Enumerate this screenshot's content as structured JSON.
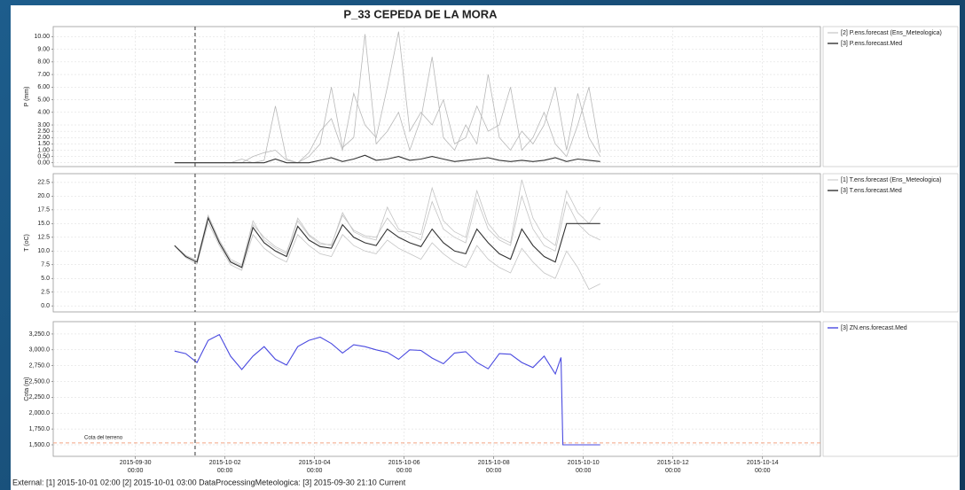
{
  "title": "P_33 CEPEDA DE LA MORA",
  "footer": "External: [1] 2015-10-01 02:00 [2] 2015-10-01 03:00 DataProcessingMeteologica: [3] 2015-09-30 21:10 Current",
  "xlim": [
    "2015-09-28 04:00",
    "2015-10-15 07:00"
  ],
  "xticks": [
    "2015-09-30 00:00",
    "2015-10-02 00:00",
    "2015-10-04 00:00",
    "2015-10-06 00:00",
    "2015-10-08 00:00",
    "2015-10-10 00:00",
    "2015-10-12 00:00",
    "2015-10-14 00:00"
  ],
  "marker_time": "2015-10-01 08:00",
  "chart_data": [
    {
      "type": "line",
      "ylabel": "P (mm)",
      "ylim": [
        -0.3,
        10.8
      ],
      "yticks": [
        {
          "value": 0,
          "label": "0.00"
        },
        {
          "value": 0.5,
          "label": "0.50"
        },
        {
          "value": 1,
          "label": "1.00"
        },
        {
          "value": 1.5,
          "label": "1.50"
        },
        {
          "value": 2,
          "label": "2.00"
        },
        {
          "value": 2.5,
          "label": "2.50"
        },
        {
          "value": 3,
          "label": "3.00"
        },
        {
          "value": 4,
          "label": "4.00"
        },
        {
          "value": 5,
          "label": "5.00"
        },
        {
          "value": 6,
          "label": "6.00"
        },
        {
          "value": 7,
          "label": "7.00"
        },
        {
          "value": 8,
          "label": "8.00"
        },
        {
          "value": 9,
          "label": "9.00"
        },
        {
          "value": 10,
          "label": "10.00"
        }
      ],
      "x": [
        "2015-09-30 21:00",
        "2015-10-01 03:00",
        "2015-10-01 09:00",
        "2015-10-01 15:00",
        "2015-10-01 21:00",
        "2015-10-02 03:00",
        "2015-10-02 09:00",
        "2015-10-02 15:00",
        "2015-10-02 21:00",
        "2015-10-03 03:00",
        "2015-10-03 09:00",
        "2015-10-03 15:00",
        "2015-10-03 21:00",
        "2015-10-04 03:00",
        "2015-10-04 09:00",
        "2015-10-04 15:00",
        "2015-10-04 21:00",
        "2015-10-05 03:00",
        "2015-10-05 09:00",
        "2015-10-05 15:00",
        "2015-10-05 21:00",
        "2015-10-06 03:00",
        "2015-10-06 09:00",
        "2015-10-06 15:00",
        "2015-10-06 21:00",
        "2015-10-07 03:00",
        "2015-10-07 09:00",
        "2015-10-07 15:00",
        "2015-10-07 21:00",
        "2015-10-08 03:00",
        "2015-10-08 09:00",
        "2015-10-08 15:00",
        "2015-10-08 21:00",
        "2015-10-09 03:00",
        "2015-10-09 09:00",
        "2015-10-09 15:00",
        "2015-10-09 21:00",
        "2015-10-10 03:00",
        "2015-10-10 09:00"
      ],
      "series": [
        {
          "name": "[2] P.ens.forecast   (Ens_Meteologica)",
          "color": "#b8b8b8",
          "members": [
            [
              0,
              0,
              0,
              0,
              0,
              0,
              0.3,
              0,
              0.2,
              4.5,
              0.3,
              0,
              0.5,
              1.5,
              6.0,
              1.2,
              2.0,
              10.2,
              1.5,
              2.5,
              4.0,
              1.0,
              3.5,
              8.4,
              2.0,
              1.0,
              3.0,
              1.5,
              7.0,
              2.0,
              1.0,
              2.5,
              1.5,
              3.0,
              6.0,
              1.0,
              5.5,
              2.0,
              0.5
            ],
            [
              0,
              0,
              0,
              0,
              0,
              0,
              0,
              0.5,
              0.8,
              1.0,
              0.2,
              0,
              0.8,
              2.5,
              3.5,
              1.0,
              5.5,
              3.0,
              2.0,
              6.0,
              10.4,
              2.5,
              4.0,
              3.0,
              5.0,
              1.5,
              2.0,
              4.5,
              2.5,
              3.0,
              6.0,
              1.0,
              2.0,
              4.0,
              1.5,
              0.5,
              3.0,
              6.0,
              0.8
            ]
          ]
        },
        {
          "name": "[3] P.ens.forecast.Med",
          "color": "#333333",
          "values": [
            0,
            0,
            0,
            0,
            0,
            0,
            0,
            0,
            0,
            0.3,
            0,
            0,
            0,
            0.2,
            0.4,
            0.1,
            0.3,
            0.6,
            0.2,
            0.3,
            0.5,
            0.2,
            0.3,
            0.5,
            0.3,
            0.1,
            0.2,
            0.3,
            0.4,
            0.2,
            0.1,
            0.2,
            0.1,
            0.2,
            0.4,
            0.1,
            0.3,
            0.2,
            0.1
          ]
        }
      ]
    },
    {
      "type": "line",
      "ylabel": "T (oC)",
      "ylim": [
        -1.1,
        24.1
      ],
      "yticks": [
        {
          "value": 0,
          "label": "0.0"
        },
        {
          "value": 2.5,
          "label": "2.5"
        },
        {
          "value": 5,
          "label": "5.0"
        },
        {
          "value": 7.5,
          "label": "7.5"
        },
        {
          "value": 10,
          "label": "10.0"
        },
        {
          "value": 12.5,
          "label": "12.5"
        },
        {
          "value": 15,
          "label": "15.0"
        },
        {
          "value": 17.5,
          "label": "17.5"
        },
        {
          "value": 20,
          "label": "20.0"
        },
        {
          "value": 22.5,
          "label": "22.5"
        }
      ],
      "x": [
        "2015-09-30 21:00",
        "2015-10-01 03:00",
        "2015-10-01 09:00",
        "2015-10-01 15:00",
        "2015-10-01 21:00",
        "2015-10-02 03:00",
        "2015-10-02 09:00",
        "2015-10-02 15:00",
        "2015-10-02 21:00",
        "2015-10-03 03:00",
        "2015-10-03 09:00",
        "2015-10-03 15:00",
        "2015-10-03 21:00",
        "2015-10-04 03:00",
        "2015-10-04 09:00",
        "2015-10-04 15:00",
        "2015-10-04 21:00",
        "2015-10-05 03:00",
        "2015-10-05 09:00",
        "2015-10-05 15:00",
        "2015-10-05 21:00",
        "2015-10-06 03:00",
        "2015-10-06 09:00",
        "2015-10-06 15:00",
        "2015-10-06 21:00",
        "2015-10-07 03:00",
        "2015-10-07 09:00",
        "2015-10-07 15:00",
        "2015-10-07 21:00",
        "2015-10-08 03:00",
        "2015-10-08 09:00",
        "2015-10-08 15:00",
        "2015-10-08 21:00",
        "2015-10-09 03:00",
        "2015-10-09 09:00",
        "2015-10-09 15:00",
        "2015-10-09 21:00",
        "2015-10-10 03:00",
        "2015-10-10 09:00"
      ],
      "series": [
        {
          "name": "[1] T.ens.forecast   (Ens_Meteologica)",
          "color": "#c4c4c4",
          "members": [
            [
              11,
              9.2,
              8.3,
              16.5,
              12,
              8.5,
              7.5,
              15.5,
              12,
              10.5,
              9.5,
              16,
              13,
              11.5,
              11,
              17,
              13.5,
              12.5,
              12,
              18,
              14,
              13,
              12,
              19,
              14,
              12.5,
              11.5,
              19.5,
              14,
              12,
              11,
              20,
              14,
              11,
              10,
              19,
              15,
              13,
              12
            ],
            [
              11,
              8.8,
              7.6,
              15.2,
              11,
              7.5,
              6.5,
              13,
              10.5,
              9,
              8,
              13,
              11,
              9.5,
              9,
              13,
              11,
              10,
              9.5,
              12,
              10.5,
              9.5,
              8.5,
              11.5,
              9.5,
              8,
              7,
              11,
              8.5,
              7,
              6,
              10.5,
              8,
              6,
              5,
              10,
              7,
              3,
              4
            ],
            [
              11,
              9,
              8,
              16.2,
              11.8,
              8.2,
              7.2,
              14.8,
              12.5,
              10.8,
              9.8,
              15.5,
              12.8,
              11.2,
              11.2,
              16.5,
              13.8,
              12.8,
              12.5,
              16,
              13.5,
              13.5,
              13,
              21.5,
              15.5,
              13.5,
              12.5,
              21,
              15,
              12.5,
              11.5,
              23,
              16,
              12.5,
              11,
              21,
              17,
              15,
              18
            ]
          ]
        },
        {
          "name": "[3] T.ens.forecast.Med",
          "color": "#333333",
          "values": [
            11,
            9,
            8,
            16,
            11.5,
            8,
            7,
            14.3,
            11.5,
            10,
            9,
            14.5,
            12,
            10.8,
            10.5,
            14.8,
            12.5,
            11.5,
            11,
            14,
            12.5,
            11.5,
            10.8,
            14,
            11.5,
            10,
            9.5,
            14,
            11.5,
            9.5,
            8.5,
            14,
            11,
            9,
            8,
            15,
            15,
            15,
            15
          ]
        }
      ]
    },
    {
      "type": "line",
      "ylabel": "Cota (m)",
      "ylim": [
        1318,
        3445
      ],
      "yticks": [
        {
          "value": 1500,
          "label": "1,500.0"
        },
        {
          "value": 1750,
          "label": "1,750.0"
        },
        {
          "value": 2000,
          "label": "2,000.0"
        },
        {
          "value": 2250,
          "label": "2,250.0"
        },
        {
          "value": 2500,
          "label": "2,500.0"
        },
        {
          "value": 2750,
          "label": "2,750.0"
        },
        {
          "value": 3000,
          "label": "3,000.0"
        },
        {
          "value": 3250,
          "label": "3,250.0"
        }
      ],
      "reference": {
        "label": "Cota del terreno",
        "value": 1530,
        "color": "#f4a582"
      },
      "x": [
        "2015-09-30 21:00",
        "2015-10-01 03:00",
        "2015-10-01 09:00",
        "2015-10-01 15:00",
        "2015-10-01 21:00",
        "2015-10-02 03:00",
        "2015-10-02 09:00",
        "2015-10-02 15:00",
        "2015-10-02 21:00",
        "2015-10-03 03:00",
        "2015-10-03 09:00",
        "2015-10-03 15:00",
        "2015-10-03 21:00",
        "2015-10-04 03:00",
        "2015-10-04 09:00",
        "2015-10-04 15:00",
        "2015-10-04 21:00",
        "2015-10-05 03:00",
        "2015-10-05 09:00",
        "2015-10-05 15:00",
        "2015-10-05 21:00",
        "2015-10-06 03:00",
        "2015-10-06 09:00",
        "2015-10-06 15:00",
        "2015-10-06 21:00",
        "2015-10-07 03:00",
        "2015-10-07 09:00",
        "2015-10-07 15:00",
        "2015-10-07 21:00",
        "2015-10-08 03:00",
        "2015-10-08 09:00",
        "2015-10-08 15:00",
        "2015-10-08 21:00",
        "2015-10-09 03:00",
        "2015-10-09 09:00",
        "2015-10-09 12:00",
        "2015-10-09 13:00",
        "2015-10-09 21:00",
        "2015-10-10 03:00",
        "2015-10-10 09:00"
      ],
      "series": [
        {
          "name": "[3] ZN.ens.forecast.Med",
          "color": "#4a4ae0",
          "values": [
            2980,
            2940,
            2800,
            3150,
            3240,
            2900,
            2690,
            2900,
            3050,
            2850,
            2760,
            3050,
            3150,
            3200,
            3100,
            2950,
            3080,
            3050,
            3000,
            2960,
            2850,
            3000,
            2990,
            2870,
            2780,
            2950,
            2970,
            2800,
            2700,
            2940,
            2930,
            2800,
            2720,
            2900,
            2620,
            2880,
            1500,
            1500,
            1500,
            1500
          ]
        }
      ]
    }
  ]
}
